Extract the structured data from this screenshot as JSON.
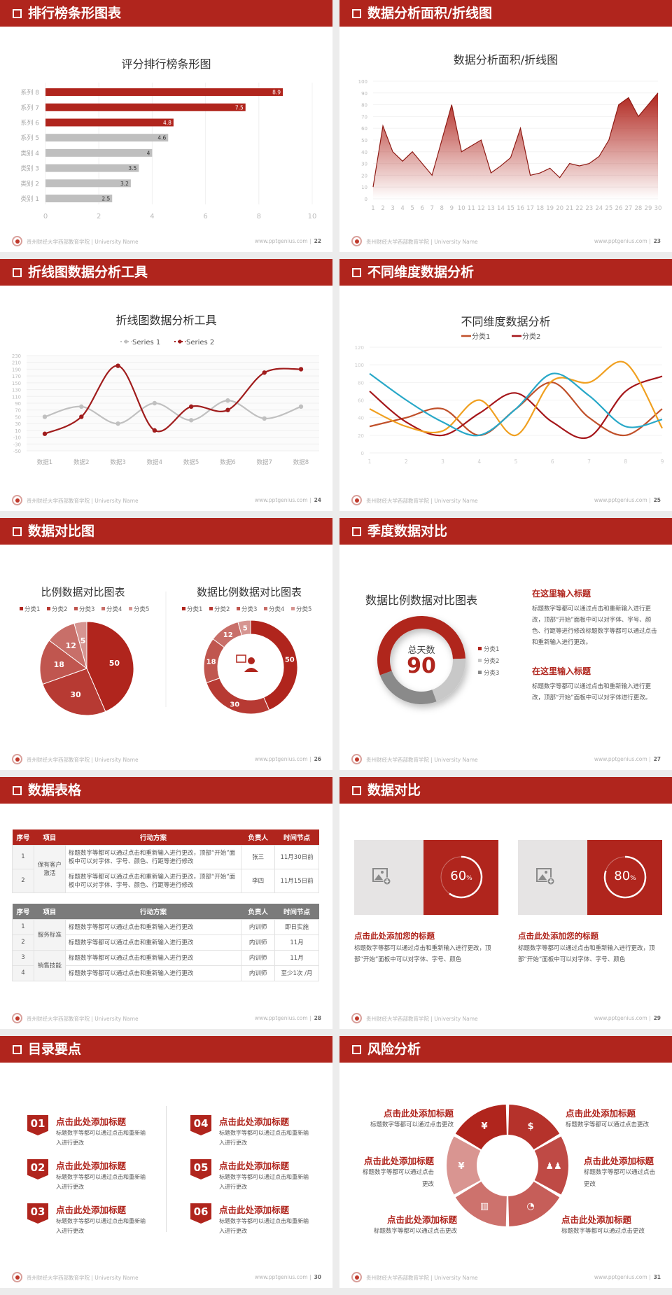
{
  "colors": {
    "primary": "#b0251d",
    "gray_bar": "#bfbfbf",
    "background": "#ececec"
  },
  "footer": {
    "school": "贵州财经大学西部教育学院 | University Name",
    "url": "www.pptgenius.com",
    "separator": "|"
  },
  "slides": [
    {
      "title": "排行榜条形图表",
      "page": "22",
      "chart_data": {
        "type": "bar",
        "orientation": "horizontal",
        "title": "评分排行榜条形图",
        "categories": [
          "类别 1",
          "类别 2",
          "类别 3",
          "类别 4",
          "系列 5",
          "系列 6",
          "系列 7",
          "系列 8"
        ],
        "values": [
          2.5,
          3.2,
          3.5,
          4,
          4.6,
          4.8,
          7.5,
          8.9
        ],
        "bar_colors": [
          "#bfbfbf",
          "#bfbfbf",
          "#bfbfbf",
          "#bfbfbf",
          "#bfbfbf",
          "#b0251d",
          "#b0251d",
          "#b0251d"
        ],
        "xlim": [
          0,
          10
        ],
        "xticks": [
          0,
          2,
          4,
          6,
          8,
          10
        ],
        "grid": true
      }
    },
    {
      "title": "数据分析面积/折线图",
      "page": "23",
      "chart_data": {
        "type": "area",
        "title": "数据分析面积/折线图",
        "x": [
          1,
          2,
          3,
          4,
          5,
          6,
          7,
          8,
          9,
          10,
          11,
          12,
          13,
          14,
          15,
          16,
          17,
          18,
          19,
          20,
          21,
          22,
          23,
          24,
          25,
          26,
          27,
          28,
          29,
          30
        ],
        "values": [
          10,
          62,
          40,
          32,
          40,
          30,
          20,
          50,
          80,
          40,
          45,
          50,
          22,
          28,
          35,
          60,
          20,
          22,
          26,
          18,
          30,
          28,
          30,
          36,
          50,
          80,
          86,
          70,
          80,
          90
        ],
        "ylim": [
          0,
          100
        ],
        "yticks": [
          0,
          10,
          20,
          30,
          40,
          50,
          60,
          70,
          80,
          90,
          100
        ],
        "color": "#b0251d",
        "grid": true
      }
    },
    {
      "title": "折线图数据分析工具",
      "page": "24",
      "chart_data": {
        "type": "line",
        "smooth": true,
        "title": "折线图数据分析工具",
        "categories": [
          "数据1",
          "数据2",
          "数据3",
          "数据4",
          "数据5",
          "数据6",
          "数据7",
          "数据8"
        ],
        "series": [
          {
            "name": "Series 1",
            "values": [
              50,
              80,
              30,
              90,
              40,
              98,
              45,
              80
            ],
            "color": "#c0c0c0"
          },
          {
            "name": "Series 2",
            "values": [
              0,
              50,
              200,
              10,
              80,
              70,
              180,
              190
            ],
            "color": "#a01c1c"
          }
        ],
        "ylim": [
          -50,
          230
        ],
        "yticks": [
          -50,
          -30,
          -10,
          10,
          30,
          50,
          70,
          90,
          110,
          130,
          150,
          170,
          190,
          210,
          230
        ],
        "legend": "top",
        "grid": true
      }
    },
    {
      "title": "不同维度数据分析",
      "page": "25",
      "chart_data": {
        "type": "line",
        "smooth": true,
        "title": "不同维度数据分析",
        "x": [
          1,
          2,
          3,
          4,
          5,
          6,
          7,
          8,
          9
        ],
        "series": [
          {
            "name": "分类1",
            "values": [
              30,
              40,
              50,
              20,
              50,
              80,
              40,
              20,
              50
            ],
            "color": "#c0502a"
          },
          {
            "name": "分类2",
            "values": [
              70,
              35,
              20,
              45,
              68,
              35,
              18,
              70,
              87
            ],
            "color": "#a5161a"
          },
          {
            "values": [
              50,
              30,
              25,
              60,
              20,
              82,
              80,
              102,
              28
            ],
            "color": "#f0a020"
          },
          {
            "values": [
              90,
              60,
              35,
              20,
              50,
              90,
              65,
              30,
              38
            ],
            "color": "#28a8c8"
          }
        ],
        "ylim": [
          0,
          120
        ],
        "yticks": [
          0,
          20,
          40,
          60,
          80,
          100,
          120
        ],
        "legend": "top",
        "grid": true
      }
    },
    {
      "title": "数据对比图",
      "page": "26",
      "chart_data": [
        {
          "type": "pie",
          "title": "比例数据对比图表",
          "labels": [
            "分类1",
            "分类2",
            "分类3",
            "分类4",
            "分类5"
          ],
          "values": [
            50,
            30,
            18,
            12,
            5
          ],
          "colors": [
            "#b0251d",
            "#b73a33",
            "#c0564f",
            "#c86f69",
            "#d69591"
          ],
          "legend": "top"
        },
        {
          "type": "donut",
          "title": "数据比例数据对比图表",
          "labels": [
            "分类1",
            "分类2",
            "分类3",
            "分类4",
            "分类5"
          ],
          "values": [
            50,
            30,
            18,
            12,
            5
          ],
          "colors": [
            "#b0251d",
            "#b73a33",
            "#c0564f",
            "#c86f69",
            "#d69591"
          ],
          "legend": "top",
          "center_icon": "presenter-icon"
        }
      ]
    },
    {
      "title": "季度数据对比",
      "page": "27",
      "chart_data": {
        "type": "donut",
        "title": "数据比例数据对比图表",
        "center_label": "总天数",
        "center_value": "90",
        "labels": [
          "分类1",
          "分类2",
          "分类3"
        ],
        "values": [
          55,
          20,
          25
        ],
        "colors": [
          "#b0251d",
          "#c8c8c8",
          "#8a8a8a"
        ],
        "legend": "right"
      },
      "blocks": [
        {
          "heading": "在这里输入标题",
          "text": "标题数字等都可以通过点击和重新输入进行更改，顶部“开始”面板中可以对字体、字号、颜色、行距等进行修改标题数字等都可以通过点击和重新输入进行更改。"
        },
        {
          "heading": "在这里输入标题",
          "text": "标题数字等都可以通过点击和重新输入进行更改，顶部“开始”面板中可以对字体进行更改。"
        }
      ]
    },
    {
      "title": "数据表格",
      "page": "28",
      "table1": {
        "headers": [
          "序号",
          "项目",
          "行动方案",
          "负责人",
          "时间节点"
        ],
        "group": "保有客户激活",
        "rows": [
          [
            "1",
            "标题数字等都可以通过点击和重新输入进行更改，顶部“开始”面板中可以对字体、字号、颜色、行距等进行修改",
            "张三",
            "11月30日前"
          ],
          [
            "2",
            "标题数字等都可以通过点击和重新输入进行更改，顶部“开始”面板中可以对字体、字号、颜色、行距等进行修改",
            "李四",
            "11月15日前"
          ]
        ]
      },
      "table2": {
        "headers": [
          "序号",
          "项目",
          "行动方案",
          "负责人",
          "时间节点"
        ],
        "groups": [
          "服务标准",
          "销售技能"
        ],
        "rows": [
          [
            "1",
            "标题数字等都可以通过点击和重新输入进行更改",
            "内训师",
            "即日实施"
          ],
          [
            "2",
            "标题数字等都可以通过点击和重新输入进行更改",
            "内训师",
            "11月"
          ],
          [
            "3",
            "标题数字等都可以通过点击和重新输入进行更改",
            "内训师",
            "11月"
          ],
          [
            "4",
            "标题数字等都可以通过点击和重新输入进行更改",
            "内训师",
            "至少1次 /月"
          ]
        ]
      }
    },
    {
      "title": "数据对比",
      "page": "29",
      "cards": [
        {
          "percent": 60,
          "value": "60",
          "unit": "%",
          "heading": "点击此处添加您的标题",
          "text": "标题数字等都可以通过点击和重新输入进行更改，顶部“开始”面板中可以对字体、字号、颜色",
          "image_icon": "add-image-icon"
        },
        {
          "percent": 80,
          "value": "80",
          "unit": "%",
          "heading": "点击此处添加您的标题",
          "text": "标题数字等都可以通过点击和重新输入进行更改，顶部“开始”面板中可以对字体、字号、颜色",
          "image_icon": "add-image-icon"
        }
      ]
    },
    {
      "title": "目录要点",
      "page": "30",
      "items": [
        {
          "num": "01",
          "heading": "点击此处添加标题",
          "text": "标题数字等都可以通过点击和重新输入进行更改"
        },
        {
          "num": "02",
          "heading": "点击此处添加标题",
          "text": "标题数字等都可以通过点击和重新输入进行更改"
        },
        {
          "num": "03",
          "heading": "点击此处添加标题",
          "text": "标题数字等都可以通过点击和重新输入进行更改"
        },
        {
          "num": "04",
          "heading": "点击此处添加标题",
          "text": "标题数字等都可以通过点击和重新输入进行更改"
        },
        {
          "num": "05",
          "heading": "点击此处添加标题",
          "text": "标题数字等都可以通过点击和重新输入进行更改"
        },
        {
          "num": "06",
          "heading": "点击此处添加标题",
          "text": "标题数字等都可以通过点击和重新输入进行更改"
        }
      ]
    },
    {
      "title": "风险分析",
      "page": "31",
      "items": [
        {
          "heading": "点击此处添加标题",
          "text": "标题数字等都可以通过点击更改",
          "icon": "money-bag-icon",
          "glyph": "¥"
        },
        {
          "heading": "点击此处添加标题",
          "text": "标题数字等都可以通过点击更改",
          "icon": "coins-icon",
          "glyph": "$"
        },
        {
          "heading": "点击此处添加标题",
          "text": "标题数字等都可以通过点击更改",
          "icon": "users-icon",
          "glyph": "♟♟"
        },
        {
          "heading": "点击此处添加标题",
          "text": "标题数字等都可以通过点击更改",
          "icon": "pie-chart-icon",
          "glyph": "◔"
        },
        {
          "heading": "点击此处添加标题",
          "text": "标题数字等都可以通过点击更改",
          "icon": "building-icon",
          "glyph": "▥"
        },
        {
          "heading": "点击此处添加标题",
          "text": "标题数字等都可以通过点击更改",
          "icon": "hand-money-icon",
          "glyph": "¥"
        }
      ],
      "segment_colors": [
        "#b0251d",
        "#b5322b",
        "#bf4a45",
        "#c65e59",
        "#cd726d",
        "#d99591"
      ]
    }
  ]
}
